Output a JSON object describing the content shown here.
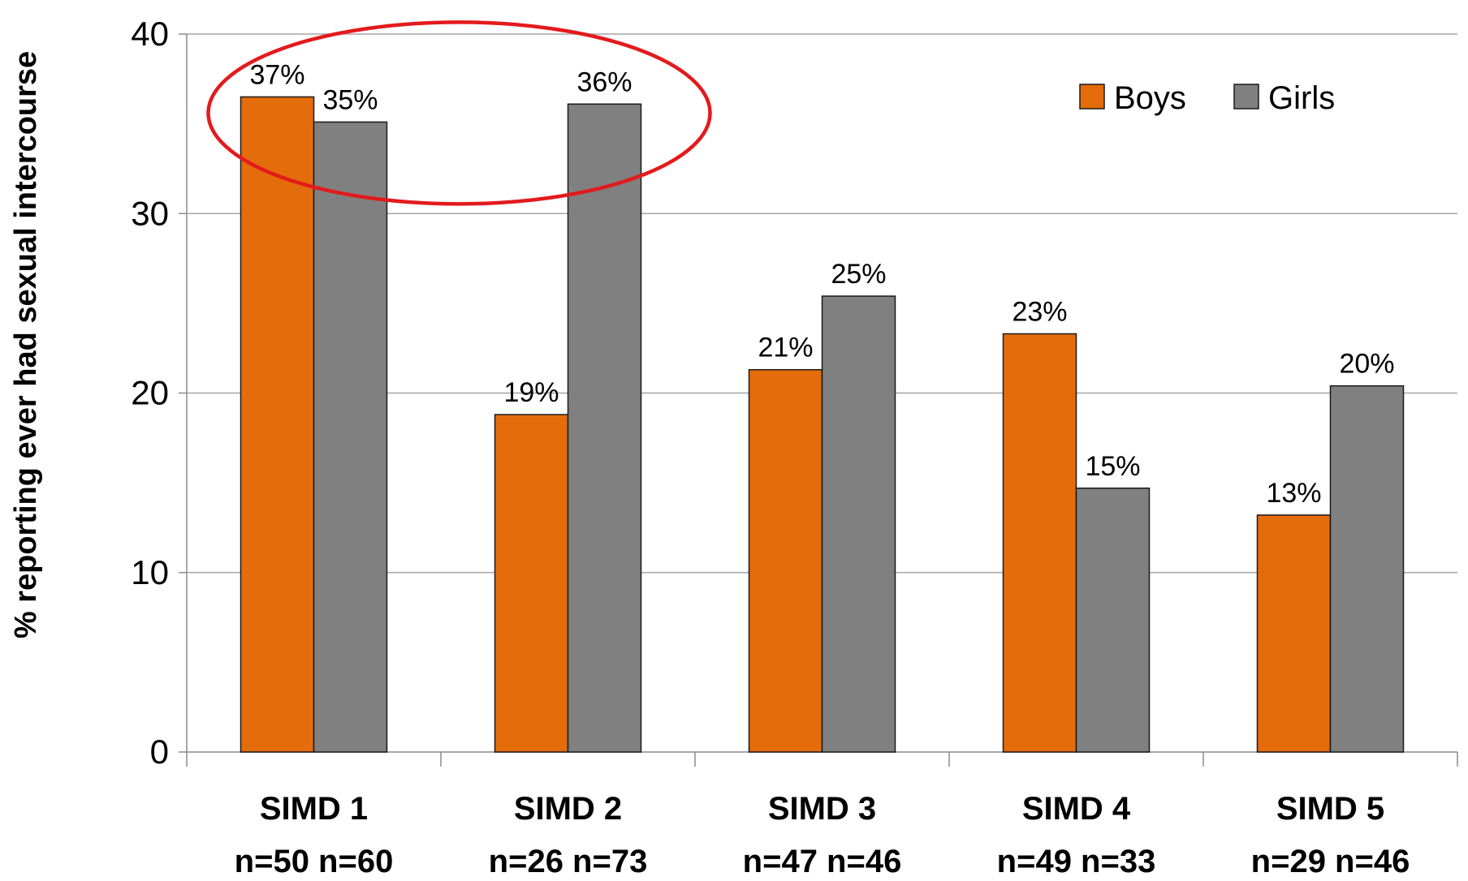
{
  "chart_data": {
    "type": "bar",
    "title": "",
    "xlabel": "",
    "ylabel": "% reporting ever had sexual intercourse",
    "ylim": [
      0,
      40
    ],
    "yticks": [
      0,
      10,
      20,
      30,
      40
    ],
    "grid": true,
    "legend_position": "top-right",
    "categories": [
      {
        "name": "SIMD 1",
        "counts": "n=50 n=60"
      },
      {
        "name": "SIMD 2",
        "counts": "n=26 n=73"
      },
      {
        "name": "SIMD 3",
        "counts": "n=47 n=46"
      },
      {
        "name": "SIMD 4",
        "counts": "n=49 n=33"
      },
      {
        "name": "SIMD 5",
        "counts": "n=29 n=46"
      }
    ],
    "series": [
      {
        "name": "Boys",
        "color": "#E46C0A",
        "values": [
          36.5,
          18.8,
          21.3,
          23.3,
          13.2
        ],
        "labels": [
          "37%",
          "19%",
          "21%",
          "23%",
          "13%"
        ]
      },
      {
        "name": "Girls",
        "color": "#808080",
        "values": [
          35.1,
          36.1,
          25.4,
          14.7,
          20.4
        ],
        "labels": [
          "35%",
          "36%",
          "25%",
          "15%",
          "20%"
        ]
      }
    ],
    "annotation": {
      "shape": "ellipse",
      "color": "#E31A1C",
      "highlights": [
        "SIMD 1",
        "SIMD 2"
      ]
    }
  }
}
